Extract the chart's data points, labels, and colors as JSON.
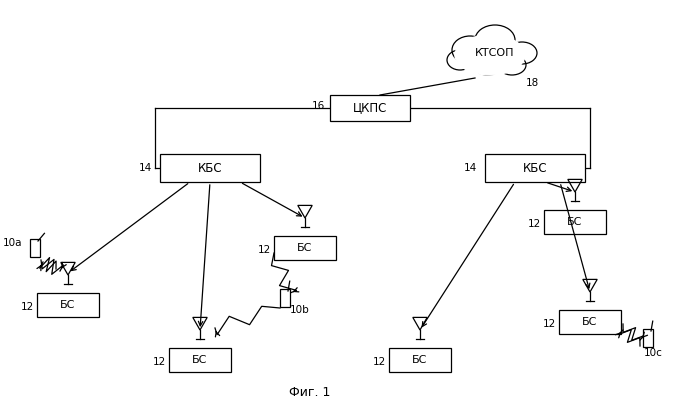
{
  "background_color": "#ffffff",
  "fig_label": "Фиг. 1",
  "cloud_label": "КТСОП",
  "cloud_id": "18",
  "ckps_label": "ЦКПС",
  "ckps_id": "16",
  "kbs_label": "КБС",
  "kbs_id": "14",
  "bs_label": "БС",
  "bs_id": "12",
  "mob_10a": "10а",
  "mob_10b": "10b",
  "mob_10c": "10с"
}
